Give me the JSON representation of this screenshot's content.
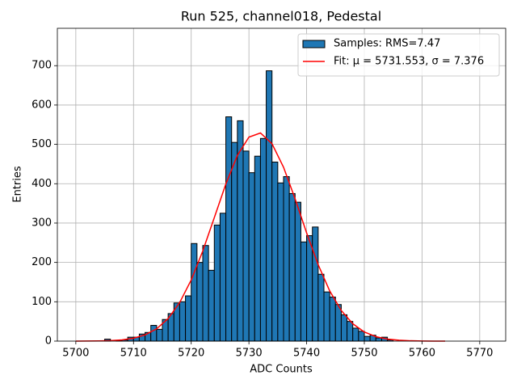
{
  "chart_data": {
    "type": "histogram",
    "title": "Run 525, channel018, Pedestal",
    "xlabel": "ADC Counts",
    "ylabel": "Entries",
    "xlim": [
      5696.8,
      5774.5
    ],
    "ylim": [
      0,
      795
    ],
    "xticks": [
      5700,
      5710,
      5720,
      5730,
      5740,
      5750,
      5760,
      5770
    ],
    "yticks": [
      0,
      100,
      200,
      300,
      400,
      500,
      600,
      700
    ],
    "grid": true,
    "legend": "upper right",
    "series": [
      {
        "type": "histogram",
        "name": "Samples: RMS=7.47",
        "color": "#1f77b4",
        "edgecolor": "#000000",
        "bins": [
          5705,
          5706,
          5707,
          5708,
          5709,
          5710,
          5711,
          5712,
          5713,
          5714,
          5715,
          5716,
          5717,
          5718,
          5719,
          5720,
          5721,
          5722,
          5723,
          5724,
          5725,
          5726,
          5727,
          5728,
          5729,
          5730,
          5731,
          5732,
          5733,
          5734,
          5735,
          5736,
          5737,
          5738,
          5739,
          5740,
          5741,
          5742,
          5743,
          5744,
          5745,
          5746,
          5747,
          5748,
          5749,
          5750,
          5751,
          5752,
          5753,
          5754,
          5755
        ],
        "values": [
          5,
          0,
          2,
          3,
          10,
          10,
          18,
          22,
          40,
          30,
          55,
          70,
          97,
          100,
          115,
          248,
          200,
          243,
          180,
          295,
          325,
          570,
          505,
          560,
          483,
          428,
          470,
          515,
          687,
          455,
          402,
          418,
          375,
          353,
          252,
          268,
          290,
          170,
          125,
          112,
          93,
          67,
          50,
          33,
          25,
          12,
          15,
          8,
          10,
          3
        ]
      },
      {
        "type": "line",
        "name": "Fit: μ = 5731.553, σ = 7.376",
        "color": "#ff0000",
        "x": [
          5700,
          5702,
          5704,
          5706,
          5708,
          5710,
          5712,
          5714,
          5716,
          5718,
          5720,
          5722,
          5724,
          5726,
          5728,
          5730,
          5732,
          5734,
          5736,
          5738,
          5740,
          5742,
          5744,
          5746,
          5748,
          5750,
          5752,
          5754,
          5756,
          5758,
          5760,
          5762,
          5764
        ],
        "values": [
          0.06,
          0.17,
          0.49,
          1.3,
          3.2,
          7.4,
          15.8,
          31.2,
          57.4,
          98.0,
          155.4,
          229.1,
          313.8,
          399.2,
          472.0,
          518.4,
          529.0,
          501.6,
          441.9,
          361.7,
          275.1,
          194.4,
          127.6,
          77.9,
          44.1,
          23.2,
          11.4,
          5.2,
          2.2,
          0.9,
          0.3,
          0.1,
          0.0
        ]
      }
    ]
  }
}
